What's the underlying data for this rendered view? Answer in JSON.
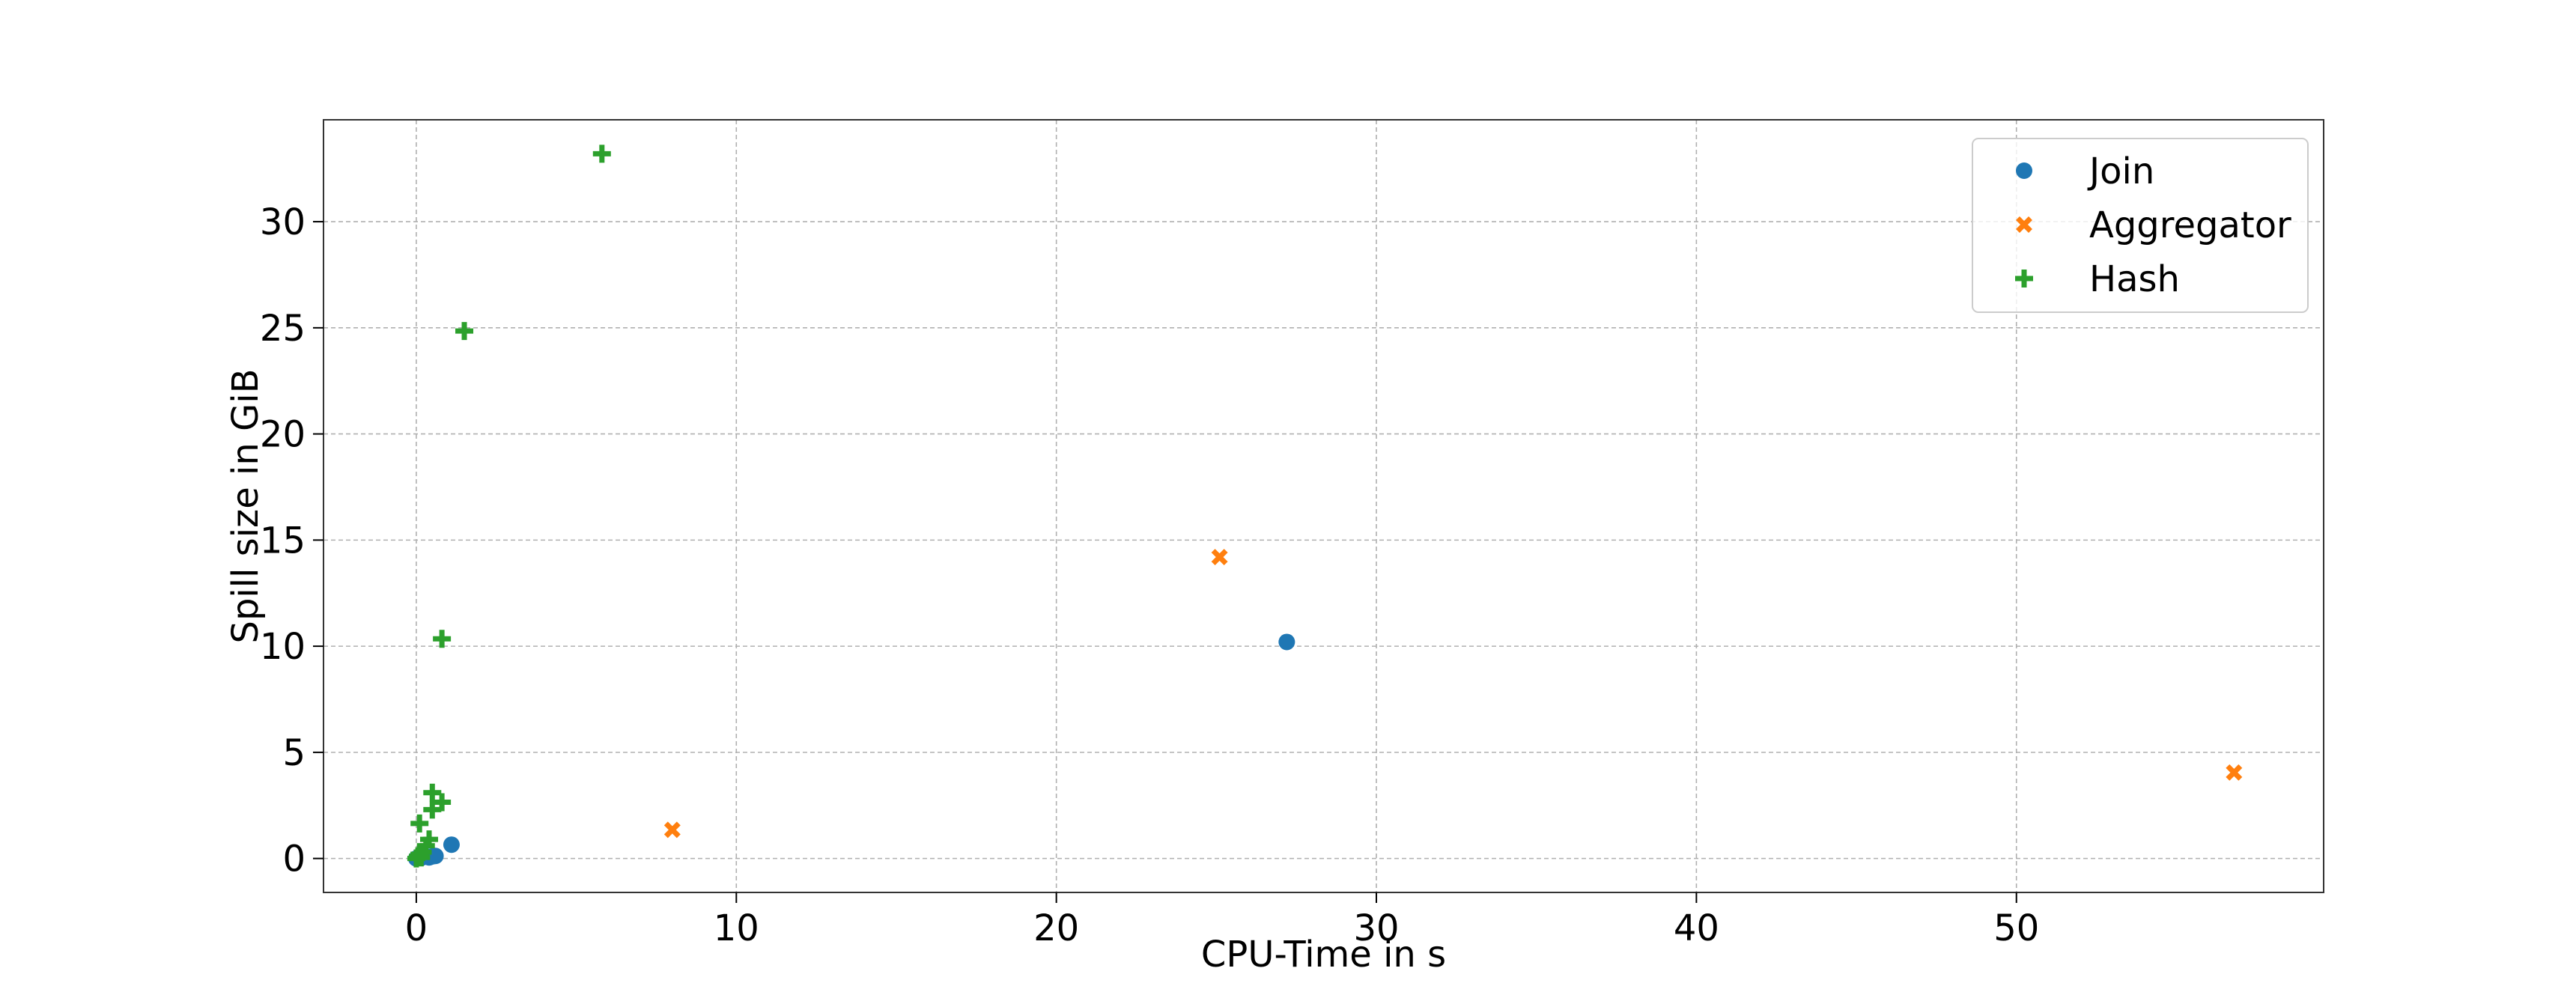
{
  "chart_data": {
    "type": "scatter",
    "title": "",
    "xlabel": "CPU-Time in s",
    "ylabel": "Spill size in GiB",
    "xlim": [
      -2.9,
      59.6
    ],
    "ylim": [
      -1.6,
      34.8
    ],
    "xticks": [
      0,
      10,
      20,
      30,
      40,
      50
    ],
    "yticks": [
      0,
      5,
      10,
      15,
      20,
      25,
      30
    ],
    "grid": true,
    "legend_position": "top-right",
    "series": [
      {
        "name": "Join",
        "marker": "circle",
        "color": "#1f77b4",
        "points": [
          [
            0.0,
            0.0
          ],
          [
            0.05,
            0.02
          ],
          [
            0.1,
            0.05
          ],
          [
            0.15,
            0.03
          ],
          [
            0.2,
            0.08
          ],
          [
            0.3,
            0.1
          ],
          [
            0.4,
            0.05
          ],
          [
            0.5,
            0.1
          ],
          [
            0.6,
            0.12
          ],
          [
            1.1,
            0.65
          ],
          [
            27.2,
            10.2
          ]
        ]
      },
      {
        "name": "Aggregator",
        "marker": "x",
        "color": "#ff7f0e",
        "points": [
          [
            8.0,
            1.35
          ],
          [
            25.1,
            14.2
          ],
          [
            56.8,
            4.05
          ]
        ]
      },
      {
        "name": "Hash",
        "marker": "plus",
        "color": "#2ca02c",
        "points": [
          [
            0.0,
            0.0
          ],
          [
            0.05,
            0.1
          ],
          [
            0.1,
            0.2
          ],
          [
            0.15,
            0.05
          ],
          [
            0.2,
            0.3
          ],
          [
            0.3,
            0.6
          ],
          [
            0.4,
            0.9
          ],
          [
            0.1,
            1.65
          ],
          [
            0.5,
            2.3
          ],
          [
            0.8,
            2.65
          ],
          [
            0.5,
            3.1
          ],
          [
            0.8,
            10.35
          ],
          [
            1.5,
            24.85
          ],
          [
            5.8,
            33.2
          ]
        ]
      }
    ]
  }
}
